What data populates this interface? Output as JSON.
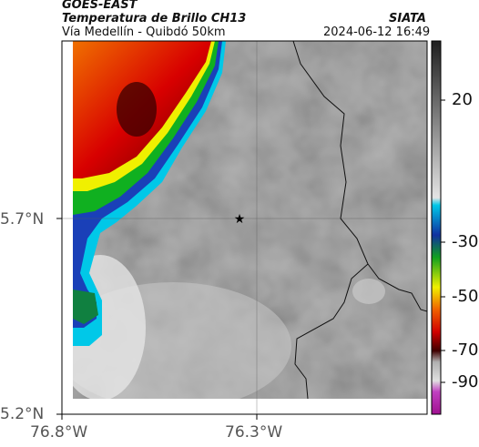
{
  "header": {
    "satellite": "GOES-EAST",
    "product": "Temperatura de Brillo CH13",
    "org": "SIATA",
    "route": "Vía Medellín - Quibdó 50km",
    "datetime": "2024-06-12 16:49"
  },
  "map": {
    "lat_ticks": [
      {
        "label": "5.7°N",
        "value": 5.7
      },
      {
        "label": "5.2°N",
        "value": 5.2
      }
    ],
    "lon_ticks": [
      {
        "label": "76.8°W",
        "value": -76.8
      },
      {
        "label": "76.3°W",
        "value": -76.3
      }
    ],
    "marker": {
      "name": "star",
      "lat": 5.7,
      "lon": -76.34
    }
  },
  "colorbar": {
    "labels": [
      "20",
      "-30",
      "-50",
      "-70",
      "-90"
    ],
    "colors": {
      "gray_dark": "#1e1e1e",
      "gray_light": "#e4e4e4",
      "cyan": "#00c8e8",
      "blue": "#1030a0",
      "green": "#10a020",
      "yellow": "#f0f000",
      "orange": "#f06000",
      "red": "#d00000",
      "darkred": "#400000",
      "magenta": "#c040c0"
    }
  }
}
